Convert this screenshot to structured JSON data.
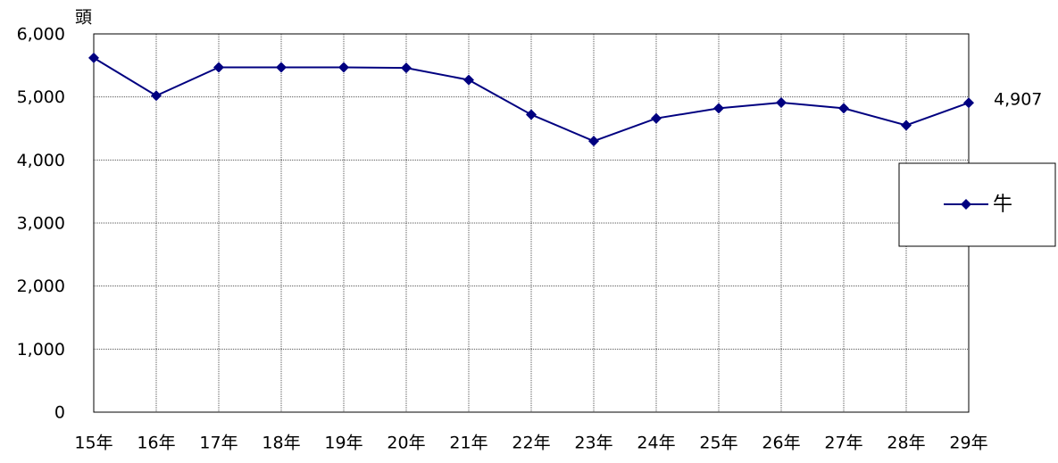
{
  "chart_data": {
    "type": "line",
    "y_unit": "頭",
    "categories": [
      "15年",
      "16年",
      "17年",
      "18年",
      "19年",
      "20年",
      "21年",
      "22年",
      "23年",
      "24年",
      "25年",
      "26年",
      "27年",
      "28年",
      "29年"
    ],
    "series": [
      {
        "name": "牛",
        "color": "#000080",
        "values": [
          5620,
          5020,
          5470,
          5470,
          5470,
          5460,
          5270,
          4720,
          4300,
          4660,
          4820,
          4910,
          4820,
          4550,
          4907
        ],
        "value_labels": [
          null,
          null,
          null,
          null,
          null,
          null,
          null,
          null,
          null,
          null,
          null,
          null,
          null,
          null,
          "4,907"
        ]
      }
    ],
    "ylim": [
      0,
      6000
    ],
    "yticks": [
      0,
      {
        "value": 1000,
        "label": "1,000"
      },
      {
        "value": 2000,
        "label": "2,000"
      },
      {
        "value": 3000,
        "label": "3,000"
      },
      {
        "value": 4000,
        "label": "4,000"
      },
      {
        "value": 5000,
        "label": "5,000"
      },
      {
        "value": 6000,
        "label": "6,000"
      }
    ],
    "grid": true,
    "legend": "right"
  }
}
